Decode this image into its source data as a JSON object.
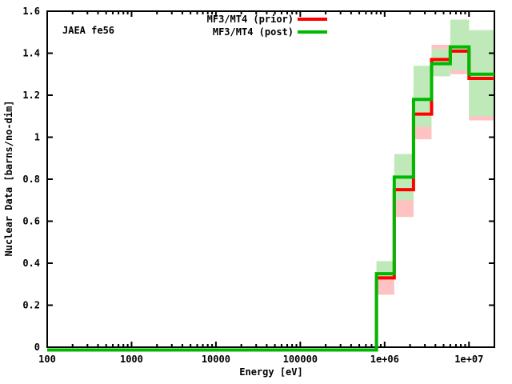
{
  "figure": {
    "background": "#ffffff",
    "frame_color": "#000000"
  },
  "chart_data": {
    "type": "line",
    "style": "step-function (histogram steps) with per-bin uncertainty bands",
    "title": "",
    "annotation": "JAEA fe56",
    "xlabel": "Energy [eV]",
    "ylabel": "Nuclear Data [barns/no-dim]",
    "xscale": "log",
    "yscale": "linear",
    "xlim": [
      100,
      20000000
    ],
    "ylim": [
      0,
      1.6
    ],
    "grid": false,
    "legend_position": "top-center",
    "x_tick_values": [
      100,
      1000,
      10000,
      100000,
      1000000,
      10000000
    ],
    "x_tick_labels": [
      "100",
      "1000",
      "10000",
      "100000",
      "1e+06",
      "1e+07"
    ],
    "y_tick_values": [
      0,
      0.2,
      0.4,
      0.6,
      0.8,
      1.0,
      1.2,
      1.4,
      1.6
    ],
    "y_tick_labels": [
      "0",
      "0.2",
      "0.4",
      "0.6",
      "0.8",
      "1",
      "1.2",
      "1.4",
      "1.6"
    ],
    "bin_edges_eV": [
      100,
      800000,
      1300000,
      2200000,
      3600000,
      6000000,
      10000000,
      20000000
    ],
    "series": [
      {
        "name": "MF3/MT4 (prior)",
        "color": "#ff0000",
        "band_color": "#ffc2c2",
        "values": [
          0,
          0.33,
          0.75,
          1.11,
          1.37,
          1.41,
          1.28
        ],
        "band_lo": [
          0,
          0.25,
          0.62,
          0.99,
          1.32,
          1.3,
          1.08
        ],
        "band_hi": [
          0,
          0.4,
          0.88,
          1.26,
          1.44,
          1.53,
          1.48
        ]
      },
      {
        "name": "MF3/MT4 (post)",
        "color": "#00b800",
        "band_color": "#c0e9ba",
        "values": [
          0,
          0.35,
          0.81,
          1.18,
          1.35,
          1.43,
          1.3
        ],
        "band_lo": [
          0,
          0.34,
          0.7,
          1.05,
          1.29,
          1.32,
          1.1
        ],
        "band_hi": [
          0,
          0.41,
          0.92,
          1.34,
          1.42,
          1.56,
          1.51
        ]
      }
    ]
  }
}
